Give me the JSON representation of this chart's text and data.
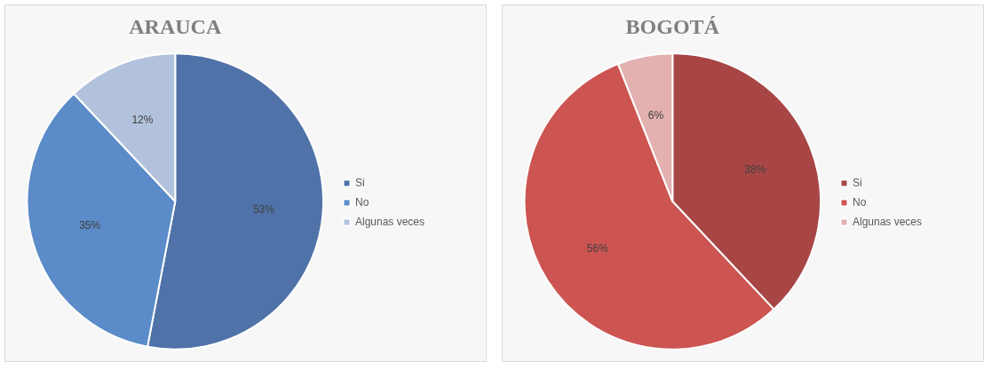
{
  "chart_data": [
    {
      "type": "pie",
      "title": "ARAUCA",
      "categories": [
        "Si",
        "No",
        "Algunas veces"
      ],
      "values": [
        53,
        35,
        12
      ],
      "value_labels": [
        "53%",
        "35%",
        "12%"
      ],
      "colors": [
        "#4f72a8",
        "#5b8bc8",
        "#b3c2dc"
      ],
      "legend": "right"
    },
    {
      "type": "pie",
      "title": "BOGOTÁ",
      "categories": [
        "Si",
        "No",
        "Algunas veces"
      ],
      "values": [
        38,
        56,
        6
      ],
      "value_labels": [
        "38%",
        "56%",
        "6%"
      ],
      "colors": [
        "#a84646",
        "#cc5552",
        "#e2b1b0"
      ],
      "legend": "right"
    }
  ]
}
